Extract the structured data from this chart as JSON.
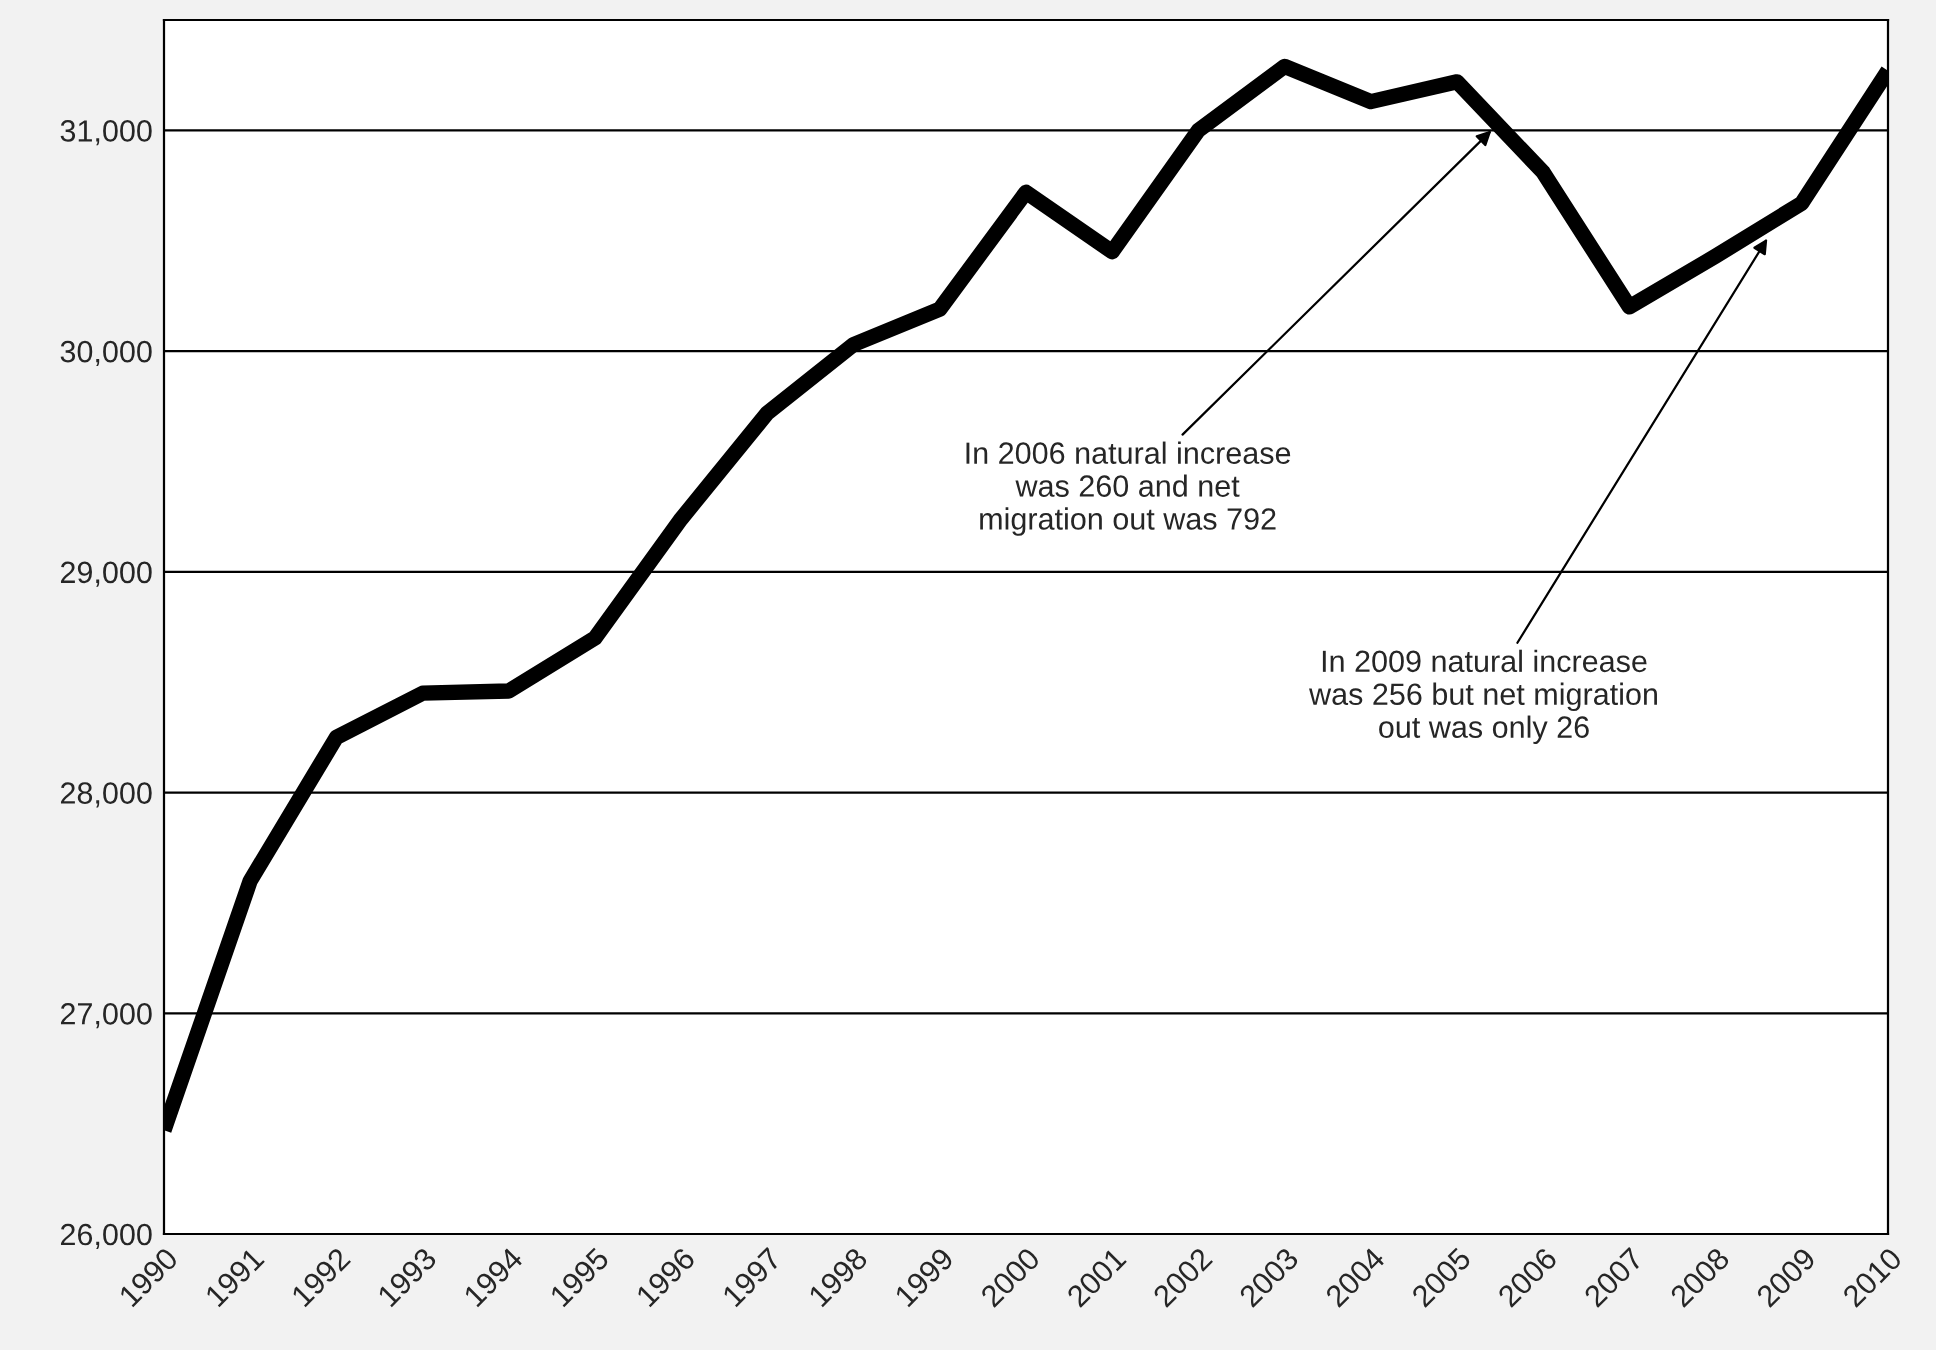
{
  "chart_data": {
    "type": "line",
    "x": [
      1990,
      1991,
      1992,
      1993,
      1994,
      1995,
      1996,
      1997,
      1998,
      1999,
      2000,
      2001,
      2002,
      2003,
      2004,
      2005,
      2006,
      2007,
      2008,
      2009,
      2010
    ],
    "series": [
      {
        "color": "#000000",
        "values": [
          26470,
          27600,
          28250,
          28450,
          28460,
          28700,
          29240,
          29720,
          30030,
          30190,
          30720,
          30450,
          31000,
          31290,
          31130,
          31220,
          30810,
          30200,
          30430,
          30670,
          31270
        ]
      }
    ],
    "xlim": [
      1990,
      2010
    ],
    "xticks": [
      1990,
      1991,
      1992,
      1993,
      1994,
      1995,
      1996,
      1997,
      1998,
      1999,
      2000,
      2001,
      2002,
      2003,
      2004,
      2005,
      2006,
      2007,
      2008,
      2009,
      2010
    ],
    "ylim": [
      26000,
      31500
    ],
    "yticks": [
      {
        "value": 26000,
        "label": "26,000"
      },
      {
        "value": 27000,
        "label": "27,000"
      },
      {
        "value": 28000,
        "label": "28,000"
      },
      {
        "value": 29000,
        "label": "29,000"
      },
      {
        "value": 30000,
        "label": "30,000"
      },
      {
        "value": 31000,
        "label": "31,000"
      }
    ],
    "grid": "y",
    "marker": "none",
    "line_style": "solid",
    "legend": false,
    "annotations": [
      {
        "text": "In 2006 natural increase\nwas 260 and net\nmigration out was 792",
        "x": 2005.4,
        "y": 31000
      },
      {
        "text": "In 2009 natural increase\nwas 256 but net migration\nout was only 26",
        "x": 2008.6,
        "y": 30510
      }
    ]
  }
}
